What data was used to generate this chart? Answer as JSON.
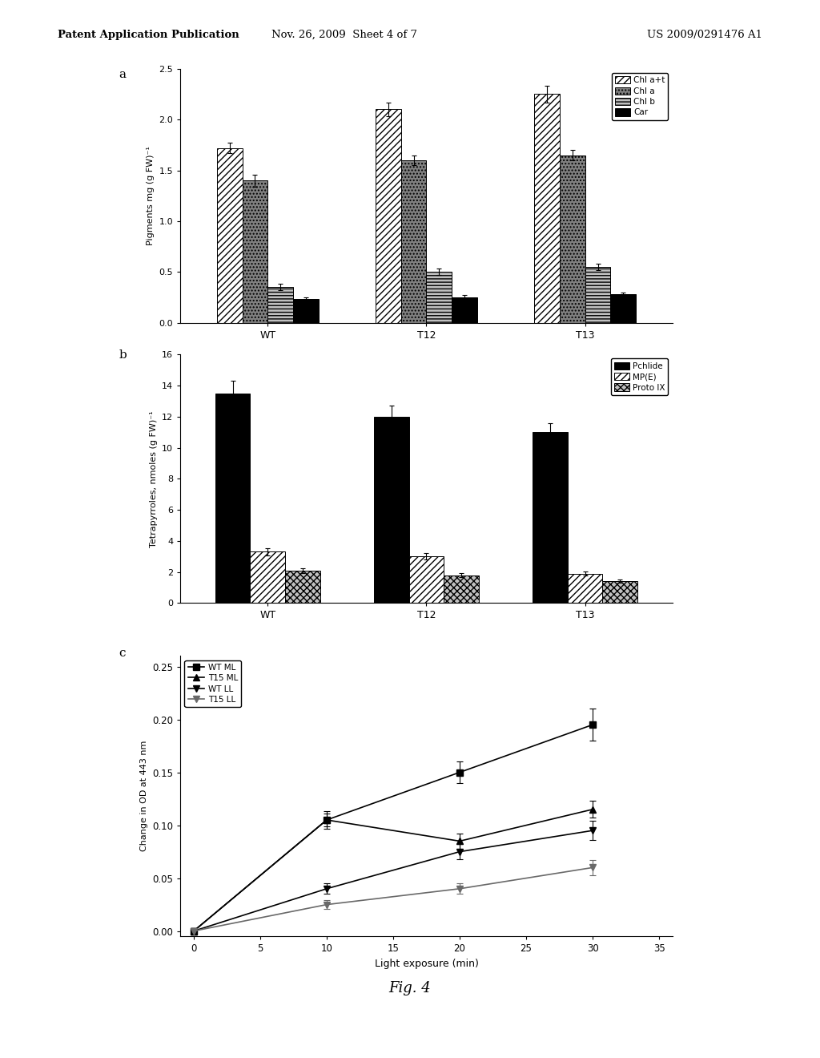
{
  "panel_a": {
    "title_label": "a",
    "categories": [
      "WT",
      "T12",
      "T13"
    ],
    "series": [
      {
        "label": "Chl a+t",
        "values": [
          1.72,
          2.1,
          2.25
        ],
        "errors": [
          0.05,
          0.07,
          0.08
        ],
        "hatch": "////",
        "color": "white",
        "edgecolor": "black"
      },
      {
        "label": "Chl a",
        "values": [
          1.4,
          1.6,
          1.65
        ],
        "errors": [
          0.06,
          0.05,
          0.05
        ],
        "hatch": "....",
        "color": "gray",
        "edgecolor": "black"
      },
      {
        "label": "Chl b",
        "values": [
          0.35,
          0.5,
          0.55
        ],
        "errors": [
          0.03,
          0.03,
          0.03
        ],
        "hatch": "----",
        "color": "silver",
        "edgecolor": "black"
      },
      {
        "label": "Car",
        "values": [
          0.23,
          0.25,
          0.28
        ],
        "errors": [
          0.02,
          0.02,
          0.02
        ],
        "hatch": "",
        "color": "black",
        "edgecolor": "black"
      }
    ],
    "ylabel": "Pigments mg (g FW)⁻¹",
    "ylim": [
      0.0,
      2.5
    ],
    "yticks": [
      0.0,
      0.5,
      1.0,
      1.5,
      2.0,
      2.5
    ]
  },
  "panel_b": {
    "title_label": "b",
    "categories": [
      "WT",
      "T12",
      "T13"
    ],
    "series": [
      {
        "label": "Pchlide",
        "values": [
          13.5,
          12.0,
          11.0
        ],
        "errors": [
          0.8,
          0.7,
          0.6
        ],
        "hatch": "",
        "color": "black",
        "edgecolor": "black"
      },
      {
        "label": "MP(E)",
        "values": [
          3.3,
          3.0,
          1.9
        ],
        "errors": [
          0.25,
          0.2,
          0.15
        ],
        "hatch": "////",
        "color": "white",
        "edgecolor": "black"
      },
      {
        "label": "Proto IX",
        "values": [
          2.1,
          1.8,
          1.4
        ],
        "errors": [
          0.15,
          0.12,
          0.1
        ],
        "hatch": "xxxx",
        "color": "silver",
        "edgecolor": "black"
      }
    ],
    "ylabel": "Tetrapyrroles, nmoles (g FW)⁻¹",
    "ylim": [
      0,
      16
    ],
    "yticks": [
      0,
      2,
      4,
      6,
      8,
      10,
      12,
      14,
      16
    ]
  },
  "panel_c": {
    "title_label": "c",
    "xlabel": "Light exposure (min)",
    "ylabel": "Change in OD at 443 nm",
    "ylim": [
      -0.005,
      0.26
    ],
    "yticks": [
      0.0,
      0.05,
      0.1,
      0.15,
      0.2,
      0.25
    ],
    "xticks": [
      0,
      5,
      10,
      15,
      20,
      25,
      30,
      35
    ],
    "series": [
      {
        "label": "WT ML",
        "x": [
          0,
          10,
          20,
          30
        ],
        "y": [
          0.0,
          0.105,
          0.15,
          0.195
        ],
        "yerr": [
          0.003,
          0.008,
          0.01,
          0.015
        ],
        "marker": "s",
        "color": "black",
        "linestyle": "-"
      },
      {
        "label": "T15 ML",
        "x": [
          0,
          10,
          20,
          30
        ],
        "y": [
          0.0,
          0.105,
          0.085,
          0.115
        ],
        "yerr": [
          0.003,
          0.006,
          0.007,
          0.008
        ],
        "marker": "^",
        "color": "black",
        "linestyle": "-"
      },
      {
        "label": "WT LL",
        "x": [
          0,
          10,
          20,
          30
        ],
        "y": [
          0.0,
          0.04,
          0.075,
          0.095
        ],
        "yerr": [
          0.002,
          0.005,
          0.007,
          0.009
        ],
        "marker": "v",
        "color": "black",
        "linestyle": "-"
      },
      {
        "label": "T15 LL",
        "x": [
          0,
          10,
          20,
          30
        ],
        "y": [
          0.0,
          0.025,
          0.04,
          0.06
        ],
        "yerr": [
          0.002,
          0.004,
          0.005,
          0.007
        ],
        "marker": "v",
        "color": "dimgray",
        "linestyle": "-"
      }
    ]
  },
  "fig4_label": "Fig. 4",
  "header_left": "Patent Application Publication",
  "header_center": "Nov. 26, 2009  Sheet 4 of 7",
  "header_right": "US 2009/0291476 A1",
  "background_color": "white",
  "text_color": "black"
}
